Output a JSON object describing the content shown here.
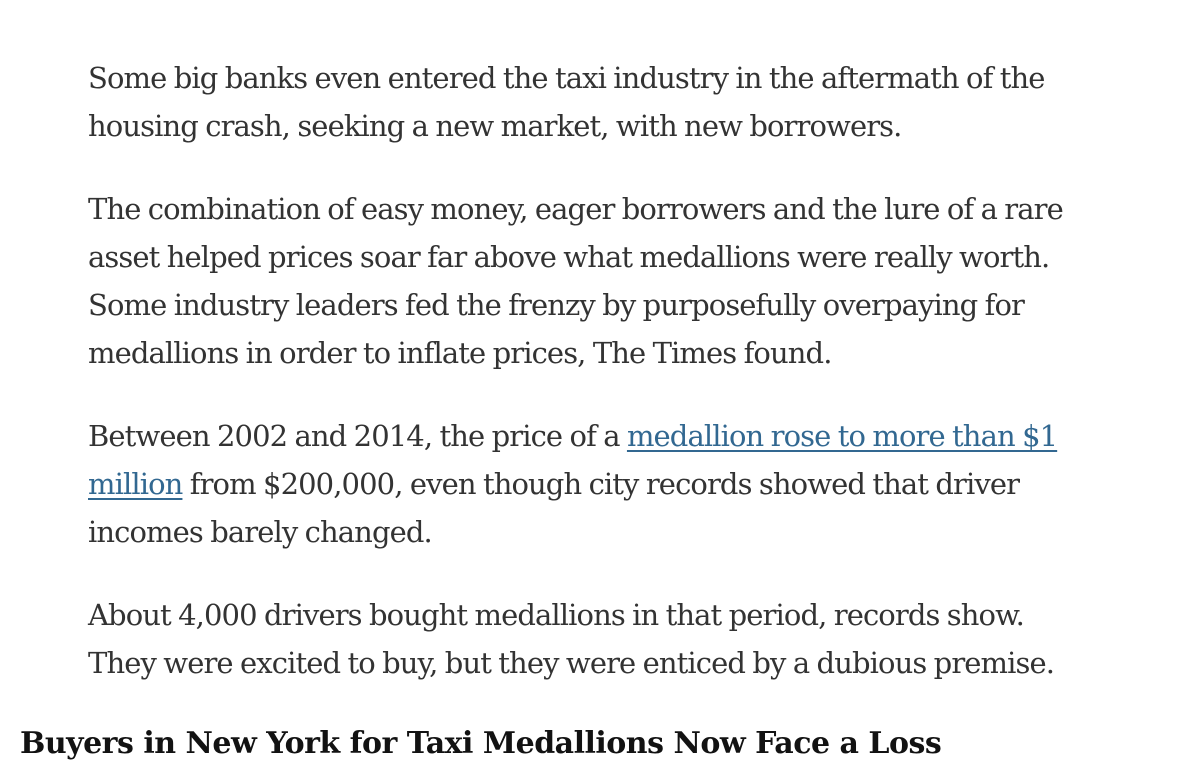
{
  "article": {
    "paragraphs": [
      {
        "lines": [
          "Some big banks even entered the taxi industry in the aftermath of the",
          "housing crash, seeking a new market, with new borrowers."
        ]
      },
      {
        "lines": [
          "The combination of easy money, eager borrowers and the lure of a rare",
          "asset helped prices soar far above what medallions were really worth.",
          "Some industry leaders fed the frenzy by purposefully overpaying for",
          "medallions in order to inflate prices, The Times found."
        ]
      },
      {
        "line1_prefix": "Between 2002 and 2014, the price of a ",
        "link_text_part1": "medallion rose to more than $1",
        "link_text_part2": "million",
        "line2_suffix": " from $200,000, even though city records showed that driver",
        "line3": "incomes barely changed."
      },
      {
        "lines": [
          "About 4,000 drivers bought medallions in that period, records show.",
          "They were excited to buy, but they were enticed by a dubious premise."
        ]
      }
    ]
  },
  "cut_heading": "Buyers in New York for Taxi Medallions Now Face a Loss"
}
